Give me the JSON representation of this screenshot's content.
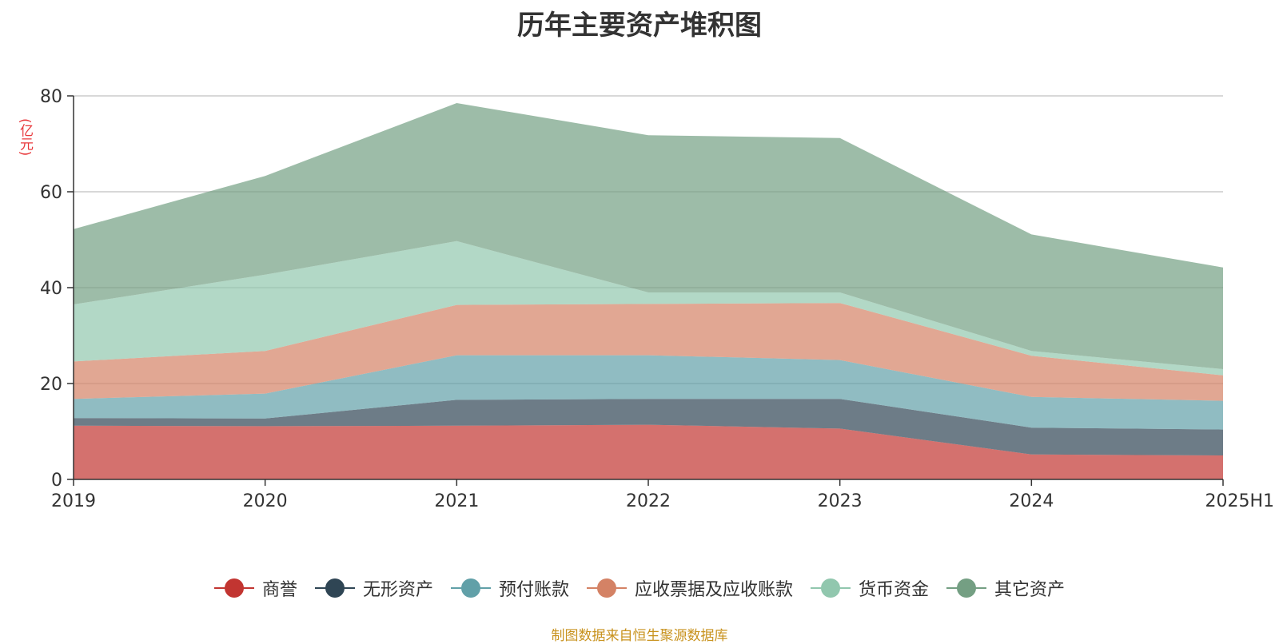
{
  "title": "历年主要资产堆积图",
  "unit_label": "(亿元)",
  "source_note": "制图数据来自恒生聚源数据库",
  "chart_data": {
    "type": "area",
    "stacked": true,
    "categories": [
      "2019",
      "2020",
      "2021",
      "2022",
      "2023",
      "2024",
      "2025H1"
    ],
    "ylim": [
      0,
      80
    ],
    "yticks": [
      0,
      20,
      40,
      60,
      80
    ],
    "grid": true,
    "legend_position": "bottom",
    "series": [
      {
        "name": "商誉",
        "color": "#c23531",
        "values": [
          11.2,
          11.1,
          11.2,
          11.4,
          10.6,
          5.2,
          5.0
        ]
      },
      {
        "name": "无形资产",
        "color": "#2f4554",
        "values": [
          1.6,
          1.6,
          5.4,
          5.4,
          6.2,
          5.6,
          5.4
        ]
      },
      {
        "name": "预付账款",
        "color": "#61a0a8",
        "values": [
          4.0,
          5.2,
          9.3,
          9.1,
          8.1,
          6.4,
          6.0
        ]
      },
      {
        "name": "应收票据及应收账款",
        "color": "#d48265",
        "values": [
          7.8,
          8.9,
          10.5,
          10.7,
          11.9,
          8.6,
          5.3
        ]
      },
      {
        "name": "货币资金",
        "color": "#91c7ae",
        "values": [
          11.9,
          15.9,
          13.3,
          2.4,
          2.2,
          1.0,
          1.3
        ]
      },
      {
        "name": "其它资产",
        "color": "#749f83",
        "values": [
          15.7,
          20.6,
          28.8,
          32.8,
          32.2,
          24.3,
          21.2
        ]
      }
    ]
  }
}
